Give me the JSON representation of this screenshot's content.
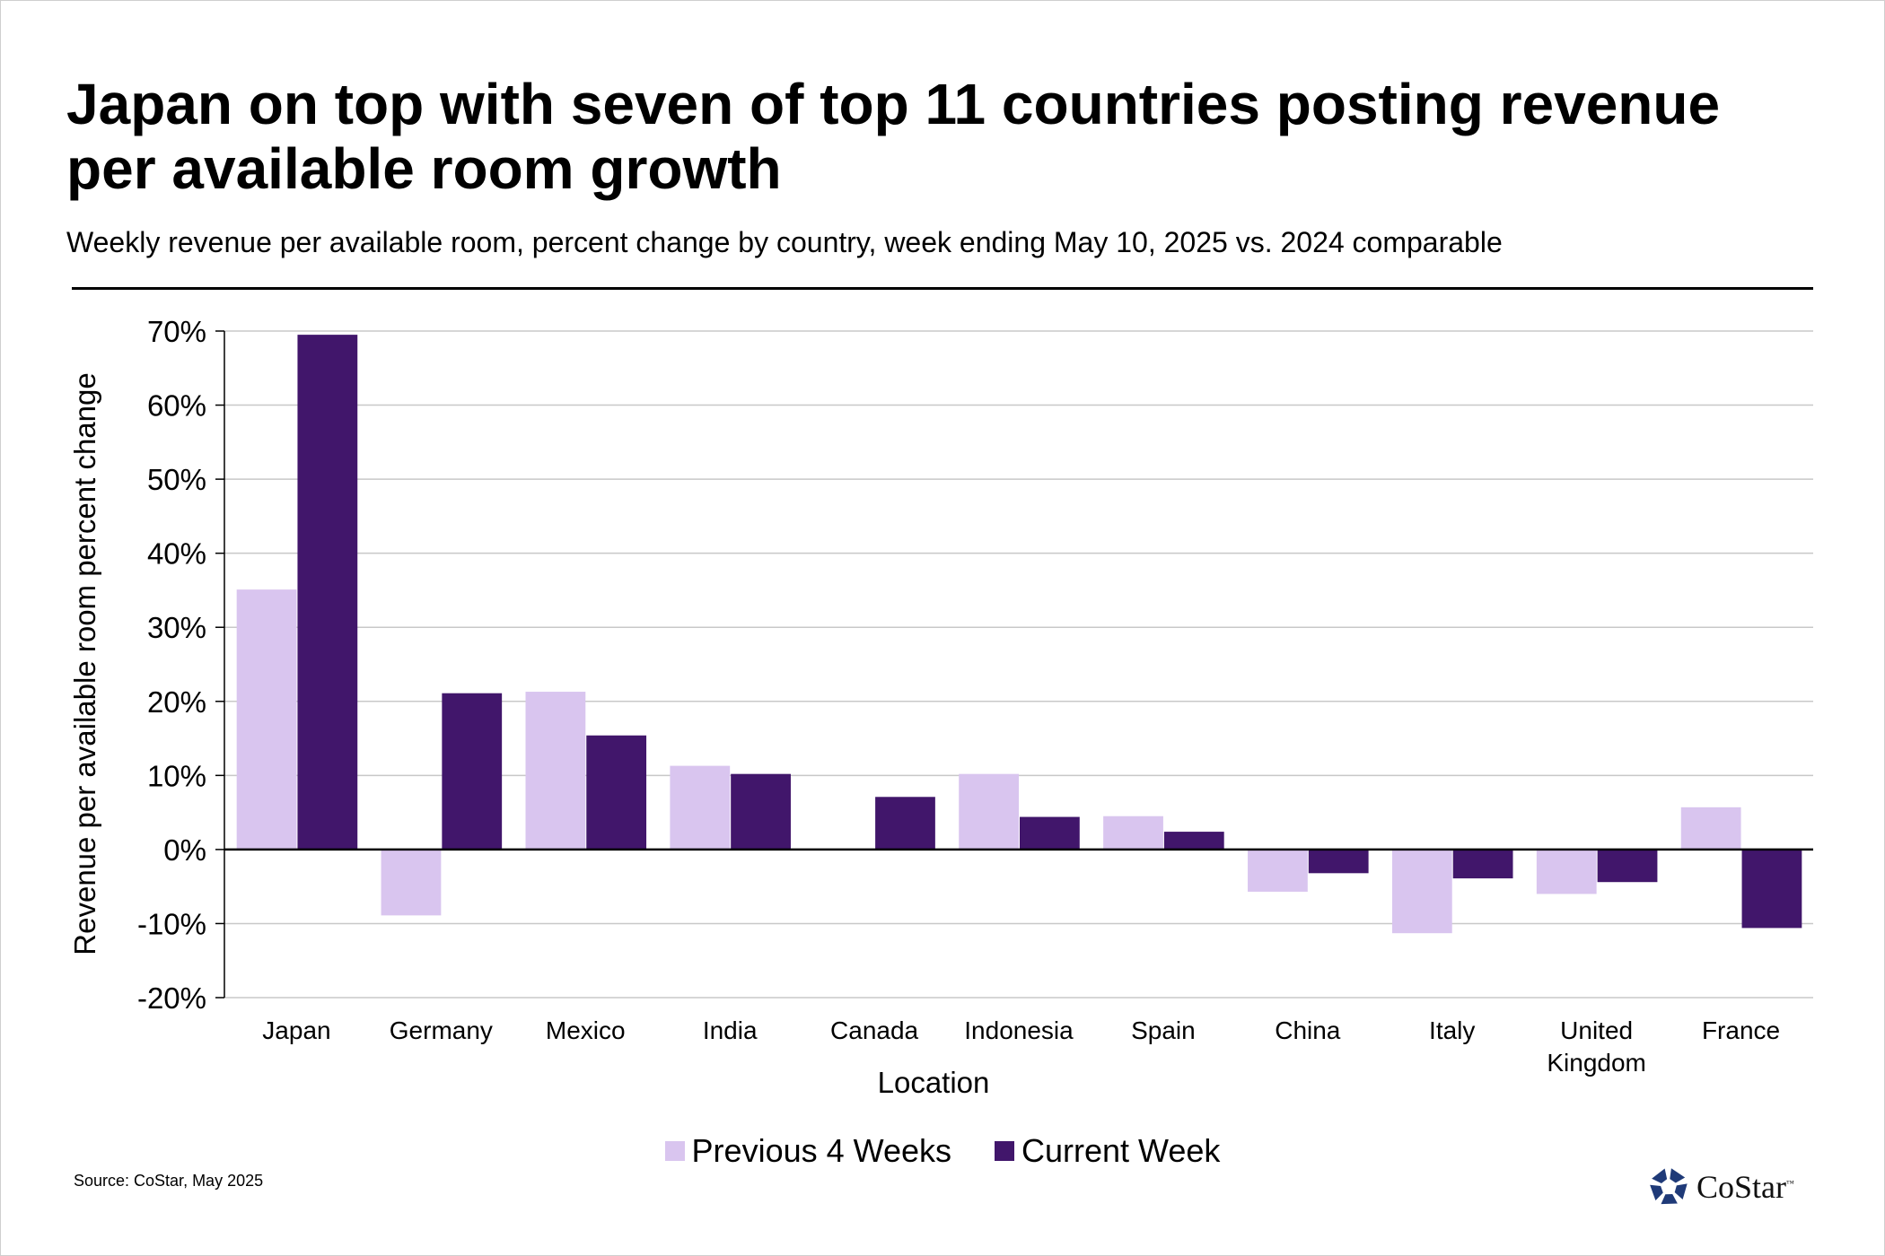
{
  "title": "Japan on top with seven of top 11 countries posting revenue per available room growth",
  "subtitle": "Weekly revenue per available room, percent change by country, week ending May 10, 2025 vs. 2024 comparable",
  "source": "Source: CoStar, May 2025",
  "logo": {
    "icon": "costar-star-icon",
    "text": "CoStar",
    "tm": "™",
    "color": "#1f3a78"
  },
  "colors": {
    "previous": "#d9c5ef",
    "current": "#41166b",
    "grid": "#c8c8c8"
  },
  "chart_data": {
    "type": "bar",
    "title": "Japan on top with seven of top 11 countries posting revenue per available room growth",
    "subtitle": "Weekly revenue per available room, percent change by country, week ending May 10, 2025 vs. 2024 comparable",
    "xlabel": "Location",
    "ylabel": "Revenue per available room percent change",
    "ylim": [
      -20,
      70
    ],
    "yticks": [
      -20,
      -10,
      0,
      10,
      20,
      30,
      40,
      50,
      60,
      70
    ],
    "ytick_labels": [
      "-20%",
      "-10%",
      "0%",
      "10%",
      "20%",
      "30%",
      "40%",
      "50%",
      "60%",
      "70%"
    ],
    "grid": true,
    "legend_position": "bottom",
    "categories": [
      "Japan",
      "Germany",
      "Mexico",
      "India",
      "Canada",
      "Indonesia",
      "Spain",
      "China",
      "Italy",
      "United Kingdom",
      "France"
    ],
    "category_lines": [
      [
        "Japan"
      ],
      [
        "Germany"
      ],
      [
        "Mexico"
      ],
      [
        "India"
      ],
      [
        "Canada"
      ],
      [
        "Indonesia"
      ],
      [
        "Spain"
      ],
      [
        "China"
      ],
      [
        "Italy"
      ],
      [
        "United",
        "Kingdom"
      ],
      [
        "France"
      ]
    ],
    "series": [
      {
        "name": "Previous 4 Weeks",
        "values": [
          35.1,
          -8.9,
          21.3,
          11.3,
          0,
          10.2,
          4.5,
          -5.7,
          -11.3,
          -6.0,
          5.7
        ]
      },
      {
        "name": "Current Week",
        "values": [
          69.5,
          21.1,
          15.4,
          10.2,
          7.1,
          4.4,
          2.4,
          -3.2,
          -3.9,
          -4.4,
          -10.6
        ]
      }
    ]
  }
}
